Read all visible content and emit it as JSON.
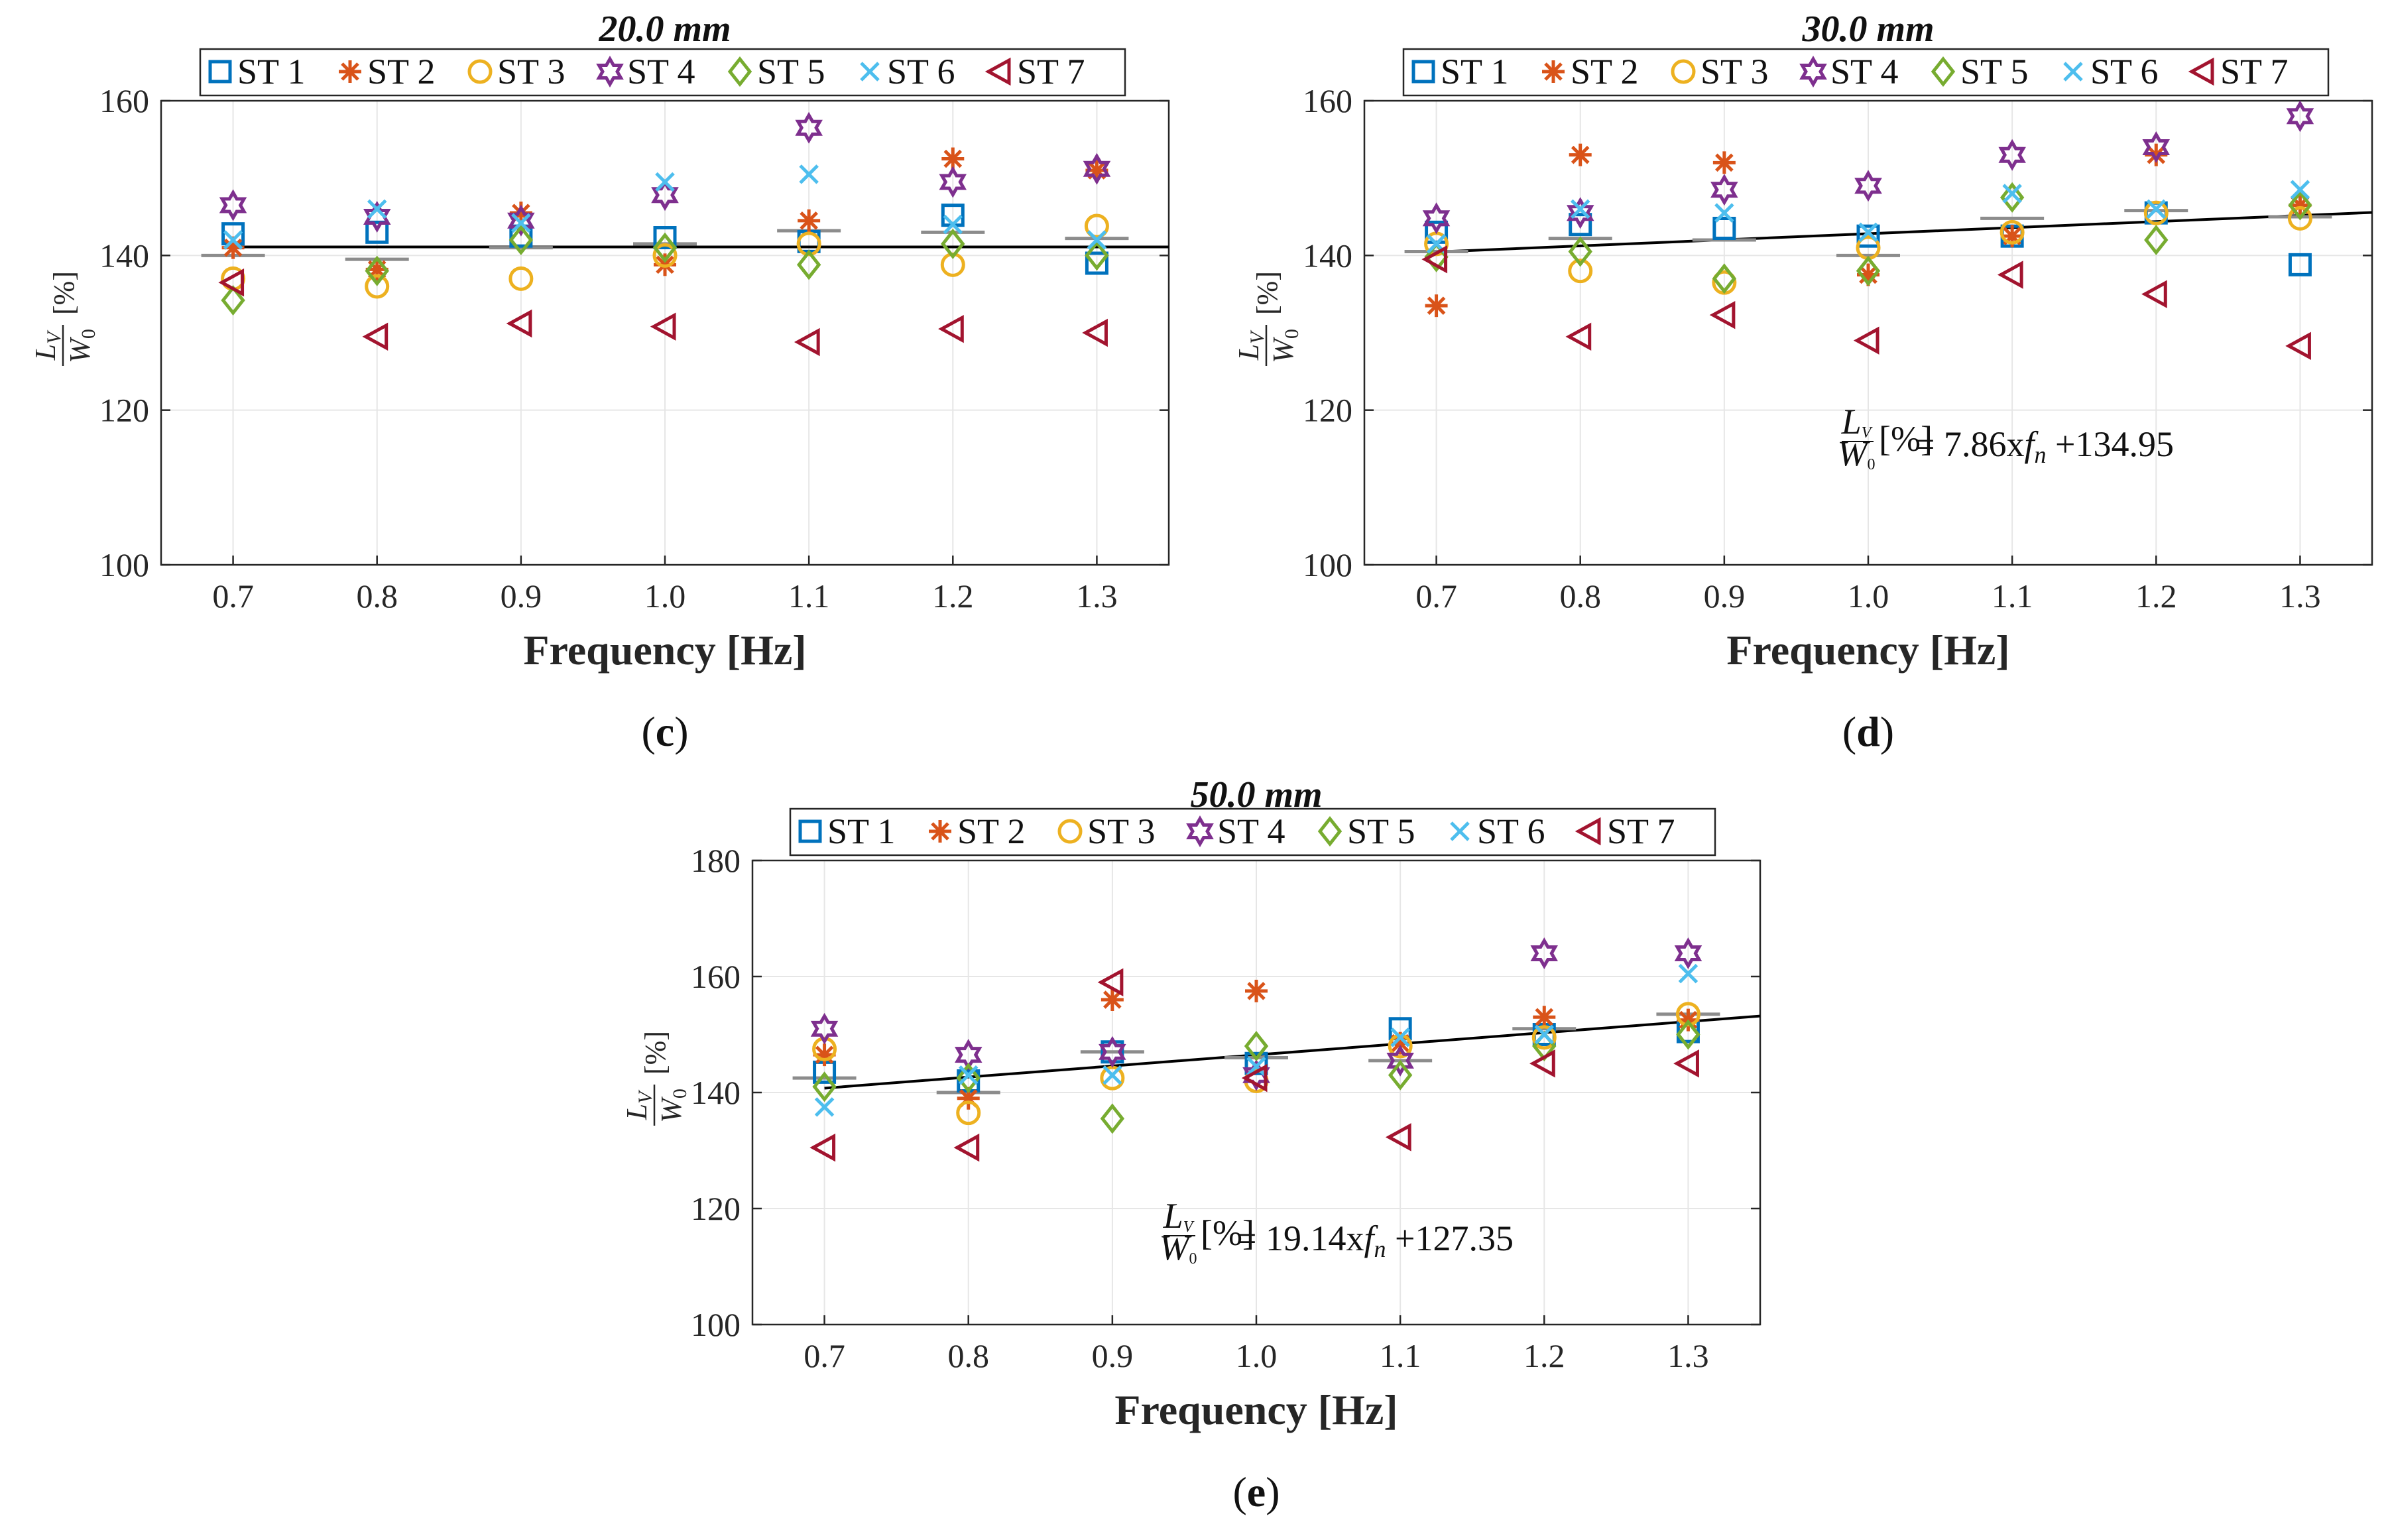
{
  "figure": {
    "colors": {
      "ST 1": "#0072BD",
      "ST 2": "#D95319",
      "ST 3": "#EDB120",
      "ST 4": "#7E2F8E",
      "ST 5": "#77AC30",
      "ST 6": "#4DBEEE",
      "ST 7": "#A2142F",
      "fit": "#000000",
      "mean_marker": "#8c8c8c",
      "grid": "#e6e6e6"
    },
    "marker_icons": {
      "ST 1": "square-icon",
      "ST 2": "asterisk-icon",
      "ST 3": "circle-icon",
      "ST 4": "hexagram-icon",
      "ST 5": "diamond-icon",
      "ST 6": "cross-icon",
      "ST 7": "left-triangle-icon"
    }
  },
  "chart_data": [
    {
      "panel": "c",
      "type": "scatter",
      "title": "20.0 mm",
      "caption": "(c)",
      "xlabel": "Frequency [Hz]",
      "ylabel": {
        "num": "L",
        "num_sub": "V",
        "den": "W",
        "den_sub": "0",
        "unit": "[%]"
      },
      "x": [
        0.7,
        0.8,
        0.9,
        1.0,
        1.1,
        1.2,
        1.3
      ],
      "x_tick_labels": [
        "0.7",
        "0.8",
        "0.9",
        "1.0",
        "1.1",
        "1.2",
        "1.3"
      ],
      "ylim": [
        100,
        160
      ],
      "y_ticks": [
        100,
        120,
        140,
        160
      ],
      "y_tick_labels": [
        "100",
        "120",
        "140",
        "160"
      ],
      "grid": true,
      "legend": [
        "ST 1",
        "ST 2",
        "ST 3",
        "ST 4",
        "ST 5",
        "ST 6",
        "ST 7"
      ],
      "legend_placement": "top",
      "series": [
        {
          "name": "ST 1",
          "values": [
            142.8,
            143.0,
            142.5,
            142.3,
            141.8,
            145.2,
            139.0
          ]
        },
        {
          "name": "ST 2",
          "values": [
            141.0,
            138.2,
            145.5,
            138.8,
            144.5,
            152.5,
            151.0
          ]
        },
        {
          "name": "ST 3",
          "values": [
            137.0,
            136.0,
            137.0,
            140.0,
            141.5,
            138.8,
            143.8
          ]
        },
        {
          "name": "ST 4",
          "values": [
            146.5,
            145.0,
            144.5,
            147.8,
            156.5,
            149.5,
            151.2
          ]
        },
        {
          "name": "ST 5",
          "values": [
            134.2,
            138.0,
            142.0,
            141.0,
            138.8,
            141.5,
            140.0
          ]
        },
        {
          "name": "ST 6",
          "values": [
            142.0,
            146.0,
            144.2,
            149.5,
            150.5,
            144.0,
            142.0
          ]
        },
        {
          "name": "ST 7",
          "values": [
            136.5,
            129.5,
            131.2,
            130.8,
            128.8,
            130.5,
            130.0
          ]
        }
      ],
      "means": [
        140.0,
        139.5,
        141.0,
        141.5,
        143.2,
        143.0,
        142.2
      ],
      "fit": {
        "slope": 0.0,
        "intercept": 141.1,
        "equation": null
      }
    },
    {
      "panel": "d",
      "type": "scatter",
      "title": "30.0 mm",
      "caption": "(d)",
      "xlabel": "Frequency [Hz]",
      "ylabel": {
        "num": "L",
        "num_sub": "V",
        "den": "W",
        "den_sub": "0",
        "unit": "[%]"
      },
      "x": [
        0.7,
        0.8,
        0.9,
        1.0,
        1.1,
        1.2,
        1.3
      ],
      "x_tick_labels": [
        "0.7",
        "0.8",
        "0.9",
        "1.0",
        "1.1",
        "1.2",
        "1.3"
      ],
      "ylim": [
        100,
        160
      ],
      "y_ticks": [
        100,
        120,
        140,
        160
      ],
      "y_tick_labels": [
        "100",
        "120",
        "140",
        "160"
      ],
      "grid": true,
      "legend": [
        "ST 1",
        "ST 2",
        "ST 3",
        "ST 4",
        "ST 5",
        "ST 6",
        "ST 7"
      ],
      "legend_placement": "top",
      "series": [
        {
          "name": "ST 1",
          "values": [
            143.0,
            144.0,
            143.5,
            142.5,
            142.5,
            145.5,
            138.8
          ]
        },
        {
          "name": "ST 2",
          "values": [
            133.5,
            153.0,
            152.0,
            137.5,
            142.5,
            153.0,
            146.5
          ]
        },
        {
          "name": "ST 3",
          "values": [
            141.5,
            138.0,
            136.5,
            141.0,
            143.0,
            145.5,
            144.8
          ]
        },
        {
          "name": "ST 4",
          "values": [
            144.8,
            145.5,
            148.5,
            149.0,
            153.0,
            154.0,
            158.0
          ]
        },
        {
          "name": "ST 5",
          "values": [
            139.8,
            140.5,
            137.0,
            138.0,
            147.5,
            142.0,
            146.5
          ]
        },
        {
          "name": "ST 6",
          "values": [
            141.5,
            146.0,
            145.5,
            143.0,
            148.0,
            146.0,
            148.5
          ]
        },
        {
          "name": "ST 7",
          "values": [
            139.5,
            129.5,
            132.3,
            129.0,
            137.5,
            135.0,
            128.3
          ]
        }
      ],
      "means": [
        140.5,
        142.2,
        142.0,
        140.0,
        144.8,
        145.8,
        145.0
      ],
      "fit": {
        "slope": 7.86,
        "intercept": 134.95,
        "equation": "= 7.86xf",
        "equation_tail": "+134.95"
      }
    },
    {
      "panel": "e",
      "type": "scatter",
      "title": "50.0 mm",
      "caption": "(e)",
      "xlabel": "Frequency [Hz]",
      "ylabel": {
        "num": "L",
        "num_sub": "V",
        "den": "W",
        "den_sub": "0",
        "unit": "[%]"
      },
      "x": [
        0.7,
        0.8,
        0.9,
        1.0,
        1.1,
        1.2,
        1.3
      ],
      "x_tick_labels": [
        "0.7",
        "0.8",
        "0.9",
        "1.0",
        "1.1",
        "1.2",
        "1.3"
      ],
      "ylim": [
        100,
        180
      ],
      "y_ticks": [
        100,
        120,
        140,
        160,
        180
      ],
      "y_tick_labels": [
        "100",
        "120",
        "140",
        "160",
        "180"
      ],
      "grid": true,
      "legend": [
        "ST 1",
        "ST 2",
        "ST 3",
        "ST 4",
        "ST 5",
        "ST 6",
        "ST 7"
      ],
      "legend_placement": "top",
      "series": [
        {
          "name": "ST 1",
          "values": [
            143.5,
            142.0,
            147.0,
            145.0,
            151.0,
            150.0,
            150.5
          ]
        },
        {
          "name": "ST 2",
          "values": [
            146.5,
            139.0,
            156.0,
            157.5,
            148.5,
            153.0,
            152.5
          ]
        },
        {
          "name": "ST 3",
          "values": [
            147.5,
            136.5,
            142.5,
            142.0,
            148.0,
            149.5,
            153.5
          ]
        },
        {
          "name": "ST 4",
          "values": [
            151.0,
            146.5,
            147.0,
            143.0,
            145.5,
            164.0,
            164.0
          ]
        },
        {
          "name": "ST 5",
          "values": [
            141.0,
            142.5,
            135.5,
            148.0,
            143.0,
            148.0,
            150.0
          ]
        },
        {
          "name": "ST 6",
          "values": [
            137.5,
            143.0,
            143.0,
            144.5,
            149.5,
            150.0,
            160.5
          ]
        },
        {
          "name": "ST 7",
          "values": [
            130.5,
            130.5,
            159.0,
            142.5,
            132.3,
            145.0,
            145.0
          ]
        }
      ],
      "means": [
        142.5,
        140.0,
        147.0,
        146.0,
        145.5,
        151.0,
        153.5
      ],
      "fit": {
        "slope": 19.14,
        "intercept": 127.35,
        "equation": "= 19.14xf",
        "equation_tail": "+127.35"
      }
    }
  ]
}
